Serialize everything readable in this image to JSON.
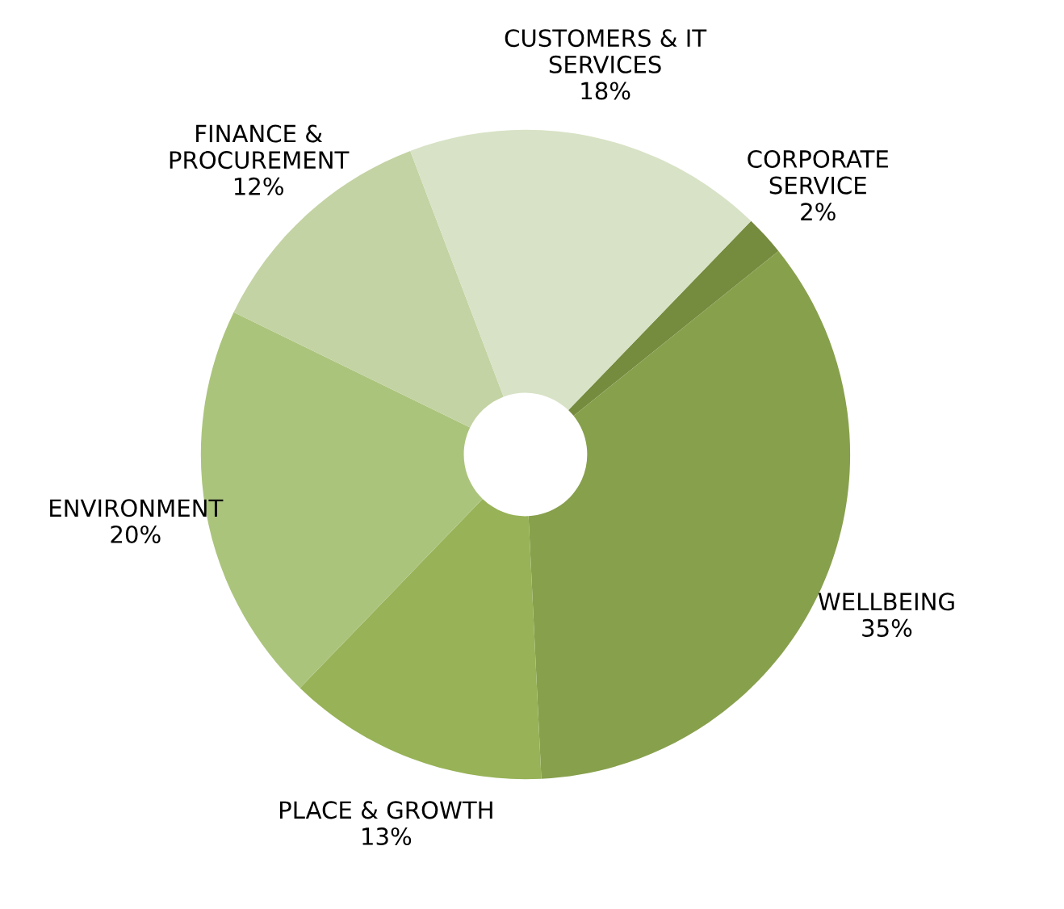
{
  "chart_data": {
    "type": "donut",
    "categories": [
      "CORPORATE\nSERVICE",
      "WELLBEING",
      "PLACE & GROWTH",
      "ENVIRONMENT",
      "FINANCE &\nPROCUREMENT",
      "CUSTOMERS & IT\nSERVICES"
    ],
    "values": [
      2,
      35,
      13,
      20,
      12,
      18
    ],
    "value_labels": [
      "2%",
      "35%",
      "13%",
      "20%",
      "12%",
      "18%"
    ],
    "colors": [
      "#758b3e",
      "#87a04c",
      "#97b257",
      "#abc47c",
      "#c3d3a3",
      "#d8e2c6"
    ],
    "legend": false
  }
}
